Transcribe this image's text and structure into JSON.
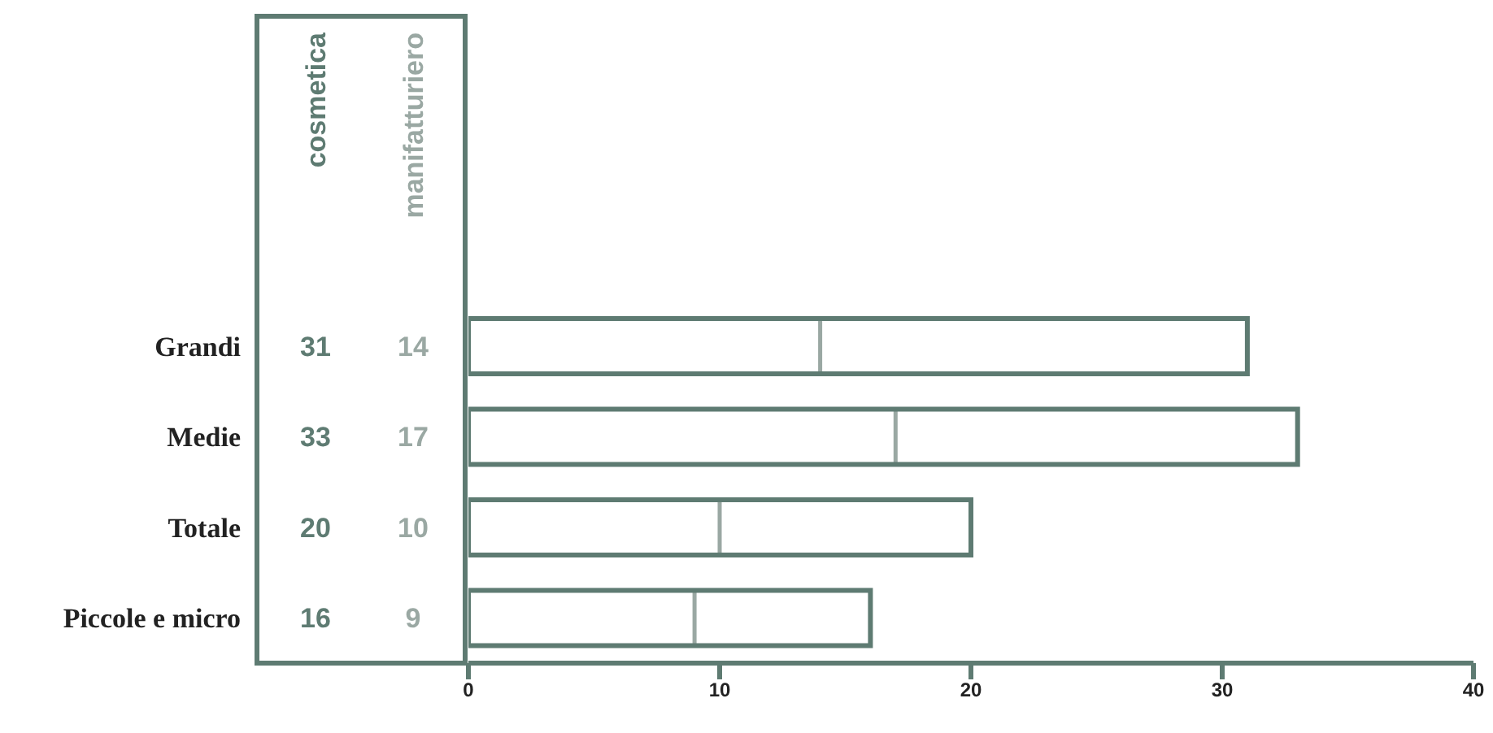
{
  "chart_data": {
    "type": "bar",
    "orientation": "horizontal",
    "categories": [
      "Grandi",
      "Medie",
      "Totale",
      "Piccole e micro"
    ],
    "series": [
      {
        "name": "cosmetica",
        "color": "#5e7b72",
        "values": [
          31,
          33,
          20,
          16
        ]
      },
      {
        "name": "manifatturiero",
        "color": "#9aa8a3",
        "values": [
          14,
          17,
          10,
          9
        ]
      }
    ],
    "xlim": [
      0,
      40
    ],
    "xticks": [
      0,
      10,
      20,
      30,
      40
    ],
    "data_labels": true
  }
}
